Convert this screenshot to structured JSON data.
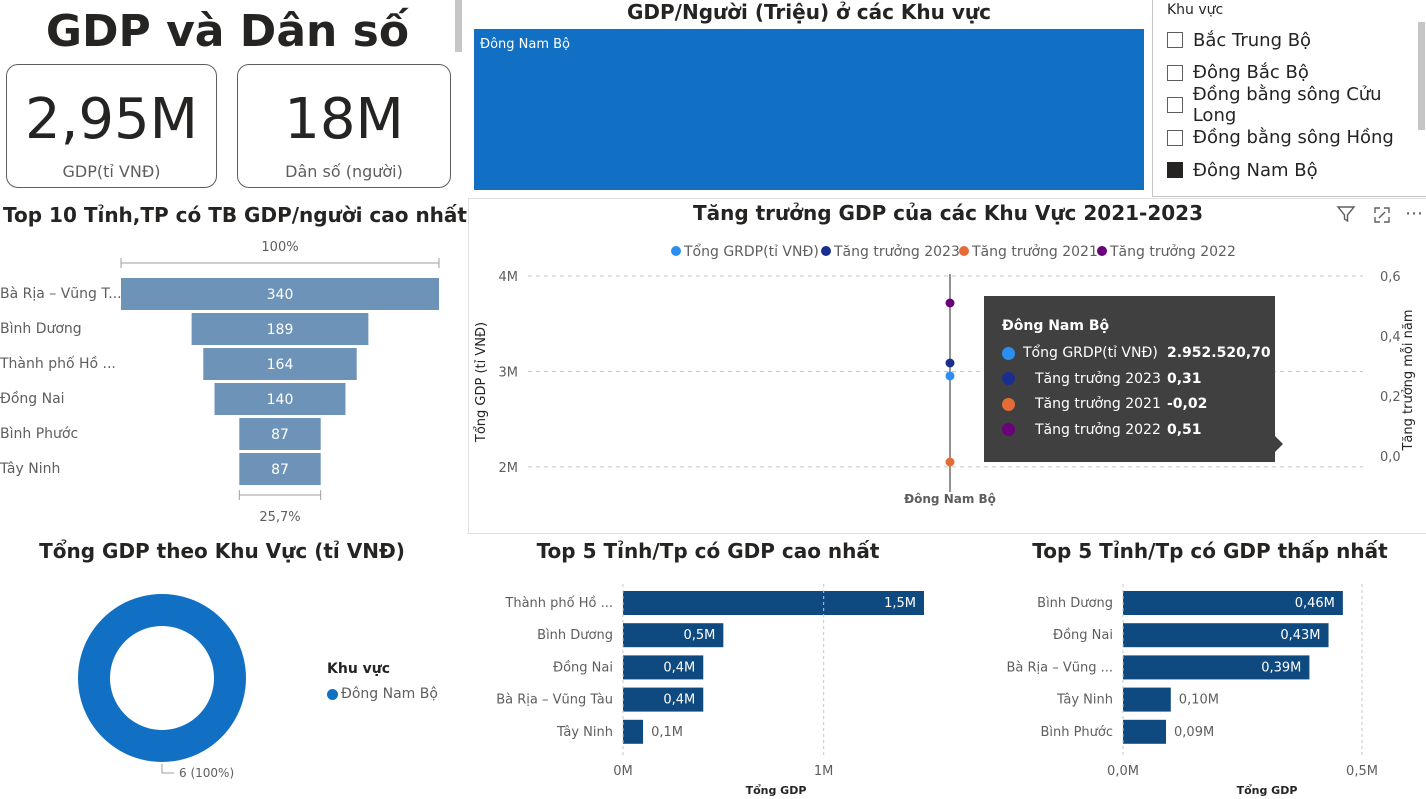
{
  "header": {
    "title": "GDP và Dân số"
  },
  "kpis": [
    {
      "value": "2,95M",
      "label": "GDP(tỉ VNĐ)"
    },
    {
      "value": "18M",
      "label": "Dân số (người)"
    }
  ],
  "gdp_per_capita_region": {
    "title": "GDP/Người (Triệu) ở các Khu vực",
    "bar_label": "Đông Nam Bộ",
    "color": "#1170c4"
  },
  "slicer": {
    "title": "Khu vực",
    "items": [
      {
        "label": "Bắc Trung Bộ",
        "checked": false
      },
      {
        "label": "Đông Bắc Bộ",
        "checked": false
      },
      {
        "label": "Đồng bằng sông Cửu Long",
        "checked": false
      },
      {
        "label": "Đồng bằng sông Hồng",
        "checked": false
      },
      {
        "label": "Đông Nam Bộ",
        "checked": true
      }
    ]
  },
  "funnel": {
    "title": "Top 10 Tỉnh,TP có TB GDP/người cao nhất",
    "top_pct": "100%",
    "bottom_pct": "25,7%",
    "color": "#6d94b8"
  },
  "growth": {
    "title": "Tăng trưởng GDP của các Khu Vực 2021-2023",
    "left_axis_label": "Tổng GDP (tỉ VNĐ)",
    "right_axis_label": "Tăng trưởng mỗi năm",
    "category": "Đông Nam Bộ",
    "left_ticks": [
      "4M",
      "3M",
      "2M"
    ],
    "right_ticks": [
      "0,6",
      "0,4",
      "0,2",
      "0,0"
    ],
    "tooltip": {
      "title": "Đông Nam Bộ",
      "rows": [
        {
          "label": "Tổng GRDP(tỉ VNĐ)",
          "value": "2.952.520,70",
          "color": "#2b8ff1"
        },
        {
          "label": "Tăng trưởng 2023",
          "value": "0,31",
          "color": "#1a2e8f"
        },
        {
          "label": "Tăng trưởng 2021",
          "value": "-0,02",
          "color": "#e66c37"
        },
        {
          "label": "Tăng trưởng 2022",
          "value": "0,51",
          "color": "#6b007b"
        }
      ]
    }
  },
  "donut": {
    "title": "Tổng GDP theo Khu Vực (tỉ VNĐ)",
    "legend_title": "Khu vực",
    "legend_item": "Đông Nam Bộ",
    "slice_label": "6 (100%)",
    "color": "#1170c4"
  },
  "top5_high": {
    "title": "Top 5 Tỉnh/Tp có GDP cao nhất",
    "xlabel": "Tổng GDP",
    "x_ticks": [
      "0M",
      "1M"
    ],
    "color": "#0e4a80"
  },
  "top5_low": {
    "title": "Top 5 Tỉnh/Tp có GDP thấp nhất",
    "xlabel": "Tổng GDP",
    "x_ticks": [
      "0,0M",
      "0,5M"
    ],
    "color": "#0e4a80"
  },
  "chart_data": [
    {
      "type": "bar",
      "orientation": "horizontal",
      "title": "Top 10 Tỉnh,TP có TB GDP/người cao nhất",
      "categories": [
        "Bà Rịa – Vũng T...",
        "Bình Dương",
        "Thành phố Hồ ...",
        "Đồng Nai",
        "Bình Phước",
        "Tây Ninh"
      ],
      "values": [
        340,
        189,
        164,
        140,
        87,
        87
      ]
    },
    {
      "type": "scatter",
      "title": "Tăng trưởng GDP của các Khu Vực 2021-2023",
      "categories": [
        "Đông Nam Bộ"
      ],
      "series": [
        {
          "name": "Tổng GRDP(tỉ VNĐ)",
          "values": [
            2952520.7
          ],
          "axis": "left"
        },
        {
          "name": "Tăng trưởng 2023",
          "values": [
            0.31
          ],
          "axis": "right"
        },
        {
          "name": "Tăng trưởng 2021",
          "values": [
            -0.02
          ],
          "axis": "right"
        },
        {
          "name": "Tăng trưởng 2022",
          "values": [
            0.51
          ],
          "axis": "right"
        }
      ],
      "ylim_left": [
        1800000,
        4000000
      ],
      "ylim_right": [
        -0.1,
        0.6
      ],
      "legend": "top"
    },
    {
      "type": "pie",
      "title": "Tổng GDP theo Khu Vực (tỉ VNĐ)",
      "categories": [
        "Đông Nam Bộ"
      ],
      "values": [
        6
      ]
    },
    {
      "type": "bar",
      "orientation": "horizontal",
      "title": "Top 5 Tỉnh/Tp có GDP cao nhất",
      "categories": [
        "Thành phố Hồ ...",
        "Bình Dương",
        "Đồng Nai",
        "Bà Rịa – Vũng Tàu",
        "Tây Ninh"
      ],
      "values": [
        1.5,
        0.5,
        0.4,
        0.4,
        0.1
      ],
      "labels": [
        "1,5M",
        "0,5M",
        "0,4M",
        "0,4M",
        "0,1M"
      ],
      "xlim": [
        0,
        1.5
      ]
    },
    {
      "type": "bar",
      "orientation": "horizontal",
      "title": "Top 5 Tỉnh/Tp có GDP thấp nhất",
      "categories": [
        "Bình Dương",
        "Đồng Nai",
        "Bà Rịa – Vũng ...",
        "Tây Ninh",
        "Bình Phước"
      ],
      "values": [
        0.46,
        0.43,
        0.39,
        0.1,
        0.09
      ],
      "labels": [
        "0,46M",
        "0,43M",
        "0,39M",
        "0,10M",
        "0,09M"
      ],
      "xlim": [
        0,
        0.5
      ]
    }
  ]
}
